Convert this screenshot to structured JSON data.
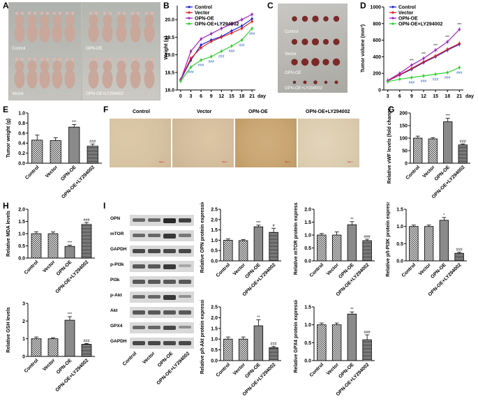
{
  "panel_labels": [
    "A",
    "B",
    "C",
    "D",
    "E",
    "F",
    "G",
    "H",
    "I"
  ],
  "panelA": {
    "labels": [
      "Control",
      "OPN-OE",
      "Vector",
      "OPN-OE+LY294002"
    ]
  },
  "panelC": {
    "labels": [
      "Control",
      "Vector",
      "OPN-OE",
      "OPN-OE+LY294002"
    ]
  },
  "panelF": {
    "headers": [
      "Control",
      "Vector",
      "OPN-OE",
      "OPN-OE+LY294002"
    ],
    "scale": "50μm"
  },
  "wb": {
    "rows": [
      "OPN",
      "mTOR",
      "GAPDH",
      "p-PI3k",
      "PI3k",
      "p-Akt",
      "Akt",
      "GPX4",
      "GAPDH"
    ],
    "lanes": [
      "Control",
      "Vector",
      "OPN-OE",
      "OPN-OE+LY294002"
    ]
  },
  "colors": {
    "control": "#1f1fd0",
    "vector": "#e02020",
    "opnoe": "#a020c0",
    "ly": "#30d030",
    "photo_bg": "#b8b6b0",
    "mouse": "#c9a79a",
    "tumor": "#7a2a28",
    "tissue": "#d8c6a6"
  },
  "chart_data": [
    {
      "id": "B",
      "type": "line",
      "xlabel": "day",
      "ylabel": "Weight (g)",
      "x": [
        0,
        3,
        6,
        9,
        12,
        15,
        18,
        21
      ],
      "ylim": [
        18.0,
        20.4
      ],
      "yticks": [
        "18.0",
        "18.5",
        "19.0",
        "19.5",
        "20.0"
      ],
      "series": [
        {
          "name": "Control",
          "values": [
            18.28,
            18.85,
            19.28,
            19.42,
            19.52,
            19.68,
            19.82,
            20.02
          ]
        },
        {
          "name": "Vector",
          "values": [
            18.3,
            18.9,
            19.2,
            19.38,
            19.5,
            19.62,
            19.75,
            19.95
          ]
        },
        {
          "name": "OPN-OE",
          "values": [
            18.28,
            19.1,
            19.45,
            19.6,
            19.75,
            19.88,
            20.0,
            20.15
          ]
        },
        {
          "name": "OPN-OE+LY294002",
          "values": [
            18.25,
            18.65,
            18.85,
            18.95,
            19.1,
            19.25,
            19.42,
            19.75
          ]
        }
      ],
      "annotations": [
        {
          "x": 3,
          "text": "###"
        },
        {
          "x": 6,
          "text": "###"
        },
        {
          "x": 9,
          "text": "###"
        },
        {
          "x": 12,
          "text": "###"
        },
        {
          "x": 15,
          "text": "###"
        },
        {
          "x": 18,
          "text": "###"
        },
        {
          "x": 21,
          "text": "###"
        },
        {
          "x": 12,
          "text": "**"
        }
      ]
    },
    {
      "id": "D",
      "type": "line",
      "xlabel": "day",
      "ylabel": "Tumor volume (mm³)",
      "x": [
        3,
        6,
        9,
        12,
        15,
        18,
        21
      ],
      "ylim": [
        0,
        1000
      ],
      "yticks": [
        "0",
        "200",
        "400",
        "600",
        "800",
        "1000"
      ],
      "series": [
        {
          "name": "Control",
          "values": [
            110,
            180,
            250,
            330,
            400,
            480,
            550
          ]
        },
        {
          "name": "Vector",
          "values": [
            110,
            185,
            260,
            340,
            410,
            490,
            560
          ]
        },
        {
          "name": "OPN-OE",
          "values": [
            115,
            200,
            300,
            380,
            480,
            580,
            730
          ]
        },
        {
          "name": "OPN-OE+LY294002",
          "values": [
            100,
            130,
            150,
            170,
            190,
            210,
            270
          ]
        }
      ],
      "annotations": [
        "***",
        "***",
        "***",
        "***",
        "***",
        "###",
        "###",
        "###",
        "###"
      ]
    },
    {
      "id": "E",
      "type": "bar",
      "ylabel": "Tumor weight (g)",
      "categories": [
        "Control",
        "Vector",
        "OPN-OE",
        "OPN-OE+LY294002"
      ],
      "values": [
        0.46,
        0.45,
        0.72,
        0.34
      ],
      "errors": [
        0.1,
        0.06,
        0.05,
        0.04
      ],
      "ylim": [
        0,
        1.0
      ],
      "yticks": [
        "0.0",
        "0.2",
        "0.4",
        "0.6",
        "0.8",
        "1.0"
      ],
      "sig": [
        "",
        "",
        "***",
        "###"
      ]
    },
    {
      "id": "G",
      "type": "bar",
      "ylabel": "Relative vWF levels (fold change,100%)",
      "categories": [
        "Control",
        "Vector",
        "OPN-OE",
        "OPN-OE+LY294002"
      ],
      "values": [
        100,
        97,
        165,
        73
      ],
      "errors": [
        8,
        5,
        14,
        4
      ],
      "ylim": [
        0,
        200
      ],
      "yticks": [
        "0",
        "50",
        "100",
        "150",
        "200"
      ],
      "sig": [
        "",
        "",
        "***",
        "###"
      ]
    },
    {
      "id": "H1",
      "type": "bar",
      "ylabel": "Relative MDA levels",
      "categories": [
        "Control",
        "Vector",
        "OPN-OE",
        "OPN-OE+LY294002"
      ],
      "values": [
        1.0,
        1.0,
        0.48,
        1.38
      ],
      "errors": [
        0.08,
        0.07,
        0.05,
        0.08
      ],
      "ylim": [
        0,
        2.0
      ],
      "yticks": [
        "0.0",
        "0.5",
        "1.0",
        "1.5",
        "2.0"
      ],
      "sig": [
        "",
        "",
        "***",
        "###"
      ]
    },
    {
      "id": "H2",
      "type": "bar",
      "ylabel": "Relative GSH levels",
      "categories": [
        "Control",
        "Vector",
        "OPN-OE",
        "OPN-OE+LY294002"
      ],
      "values": [
        1.0,
        1.0,
        2.05,
        0.68
      ],
      "errors": [
        0.1,
        0.06,
        0.2,
        0.05
      ],
      "ylim": [
        0,
        3.0
      ],
      "yticks": [
        "0",
        "1",
        "2",
        "3"
      ],
      "sig": [
        "",
        "",
        "***",
        "###"
      ]
    },
    {
      "id": "I1",
      "type": "bar",
      "ylabel": "Relative OPN protein expression",
      "categories": [
        "Control",
        "Vector",
        "OPN-OE",
        "OPN-OE+LY294002"
      ],
      "values": [
        1.0,
        0.98,
        1.65,
        1.38
      ],
      "errors": [
        0.06,
        0.05,
        0.08,
        0.2
      ],
      "ylim": [
        0,
        2.5
      ],
      "yticks": [
        "0.0",
        "0.5",
        "1.0",
        "1.5",
        "2.0",
        "2.5"
      ],
      "sig": [
        "",
        "",
        "***",
        "#"
      ]
    },
    {
      "id": "I2",
      "type": "bar",
      "ylabel": "Relative mTOR protein expression",
      "categories": [
        "Control",
        "Vector",
        "OPN-OE",
        "OPN-OE+LY294002"
      ],
      "values": [
        1.0,
        1.0,
        1.4,
        0.78
      ],
      "errors": [
        0.06,
        0.12,
        0.12,
        0.06
      ],
      "ylim": [
        0,
        2.0
      ],
      "yticks": [
        "0.0",
        "0.5",
        "1.0",
        "1.5",
        "2.0"
      ],
      "sig": [
        "",
        "",
        "**",
        "###"
      ]
    },
    {
      "id": "I3",
      "type": "bar",
      "ylabel": "Relative p/t-PI3K protein expression",
      "categories": [
        "Control",
        "Vector",
        "OPN-OE",
        "OPN-OE+LY294002"
      ],
      "values": [
        1.0,
        1.0,
        1.18,
        0.22
      ],
      "errors": [
        0.04,
        0.04,
        0.08,
        0.03
      ],
      "ylim": [
        0,
        1.5
      ],
      "yticks": [
        "0.0",
        "0.5",
        "1.0",
        "1.5"
      ],
      "sig": [
        "",
        "",
        "*",
        "###"
      ]
    },
    {
      "id": "I4",
      "type": "bar",
      "ylabel": "Relative p/t-Akt protein expression",
      "categories": [
        "Control",
        "Vector",
        "OPN-OE",
        "OPN-OE+LY294002"
      ],
      "values": [
        1.0,
        1.0,
        1.62,
        0.6
      ],
      "errors": [
        0.1,
        0.1,
        0.28,
        0.06
      ],
      "ylim": [
        0,
        2.5
      ],
      "yticks": [
        "0.0",
        "0.5",
        "1.0",
        "1.5",
        "2.0",
        "2.5"
      ],
      "sig": [
        "",
        "",
        "**",
        "###"
      ]
    },
    {
      "id": "I5",
      "type": "bar",
      "ylabel": "Relative GPX4 protein expression",
      "categories": [
        "Control",
        "Vector",
        "OPN-OE",
        "OPN-OE+LY294002"
      ],
      "values": [
        1.0,
        1.0,
        1.3,
        0.58
      ],
      "errors": [
        0.05,
        0.05,
        0.06,
        0.14
      ],
      "ylim": [
        0,
        1.5
      ],
      "yticks": [
        "0.0",
        "0.5",
        "1.0",
        "1.5"
      ],
      "sig": [
        "",
        "",
        "**",
        "###"
      ]
    }
  ]
}
